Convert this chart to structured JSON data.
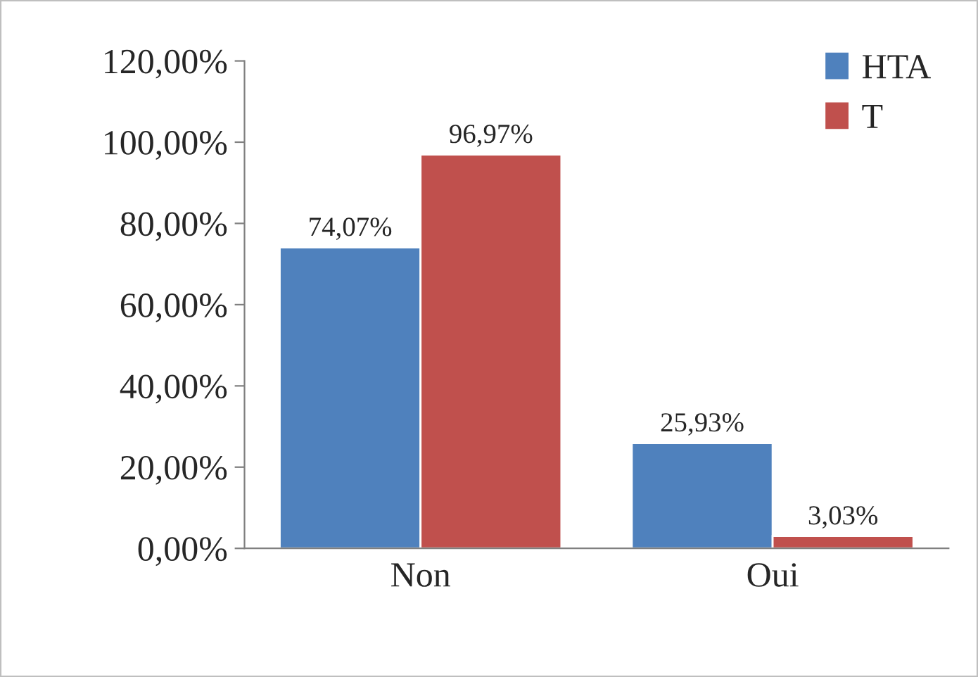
{
  "chart_data": {
    "type": "bar",
    "categories": [
      "Non",
      "Oui"
    ],
    "series": [
      {
        "name": "HTA",
        "color": "#4f81bd",
        "values": [
          74.07,
          25.93
        ],
        "value_labels": [
          "74,07%",
          "25,93%"
        ]
      },
      {
        "name": "T",
        "color": "#c0504d",
        "values": [
          96.97,
          3.03
        ],
        "value_labels": [
          "96,97%",
          "3,03%"
        ]
      }
    ],
    "ylim": [
      0,
      120
    ],
    "yticks": [
      {
        "value": 0,
        "label": "0,00%"
      },
      {
        "value": 20,
        "label": "20,00%"
      },
      {
        "value": 40,
        "label": "40,00%"
      },
      {
        "value": 60,
        "label": "60,00%"
      },
      {
        "value": 80,
        "label": "80,00%"
      },
      {
        "value": 100,
        "label": "100,00%"
      },
      {
        "value": 120,
        "label": "120,00%"
      }
    ],
    "grid": false,
    "legend": "top right"
  }
}
